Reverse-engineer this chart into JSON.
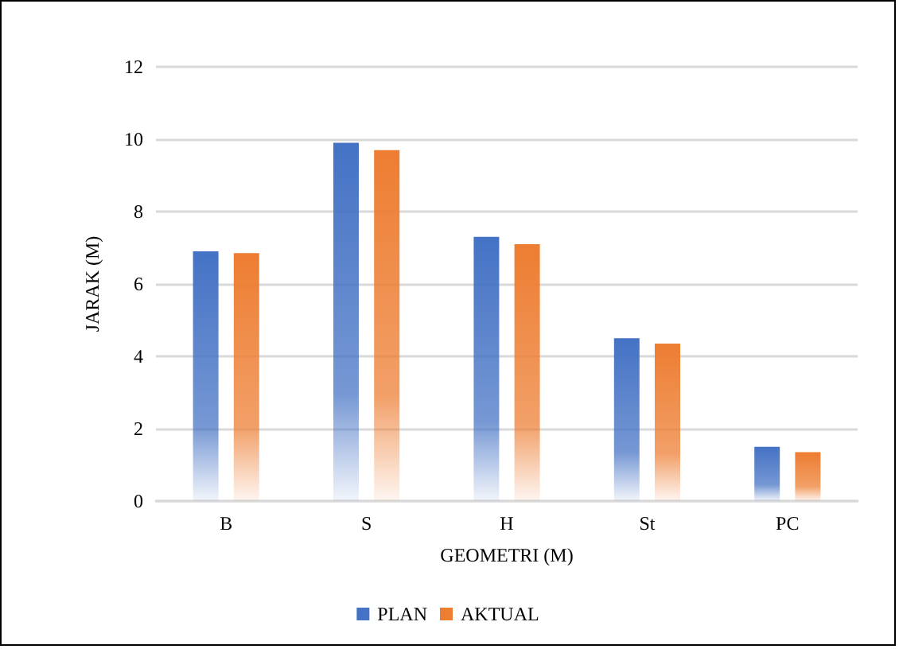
{
  "chart_data": {
    "type": "bar",
    "xlabel": "GEOMETRI (M)",
    "ylabel": "JARAK (M)",
    "categories": [
      "B",
      "S",
      "H",
      "St",
      "PC"
    ],
    "series": [
      {
        "name": "PLAN",
        "color": "#4472c4",
        "values": [
          6.9,
          9.9,
          7.3,
          4.5,
          1.5
        ]
      },
      {
        "name": "AKTUAL",
        "color": "#ed7d31",
        "values": [
          6.85,
          9.7,
          7.1,
          4.35,
          1.35
        ]
      }
    ],
    "ylim": [
      0,
      12
    ],
    "yticks": [
      0,
      2,
      4,
      6,
      8,
      10,
      12
    ],
    "grid": "y",
    "legend": "bottom"
  }
}
